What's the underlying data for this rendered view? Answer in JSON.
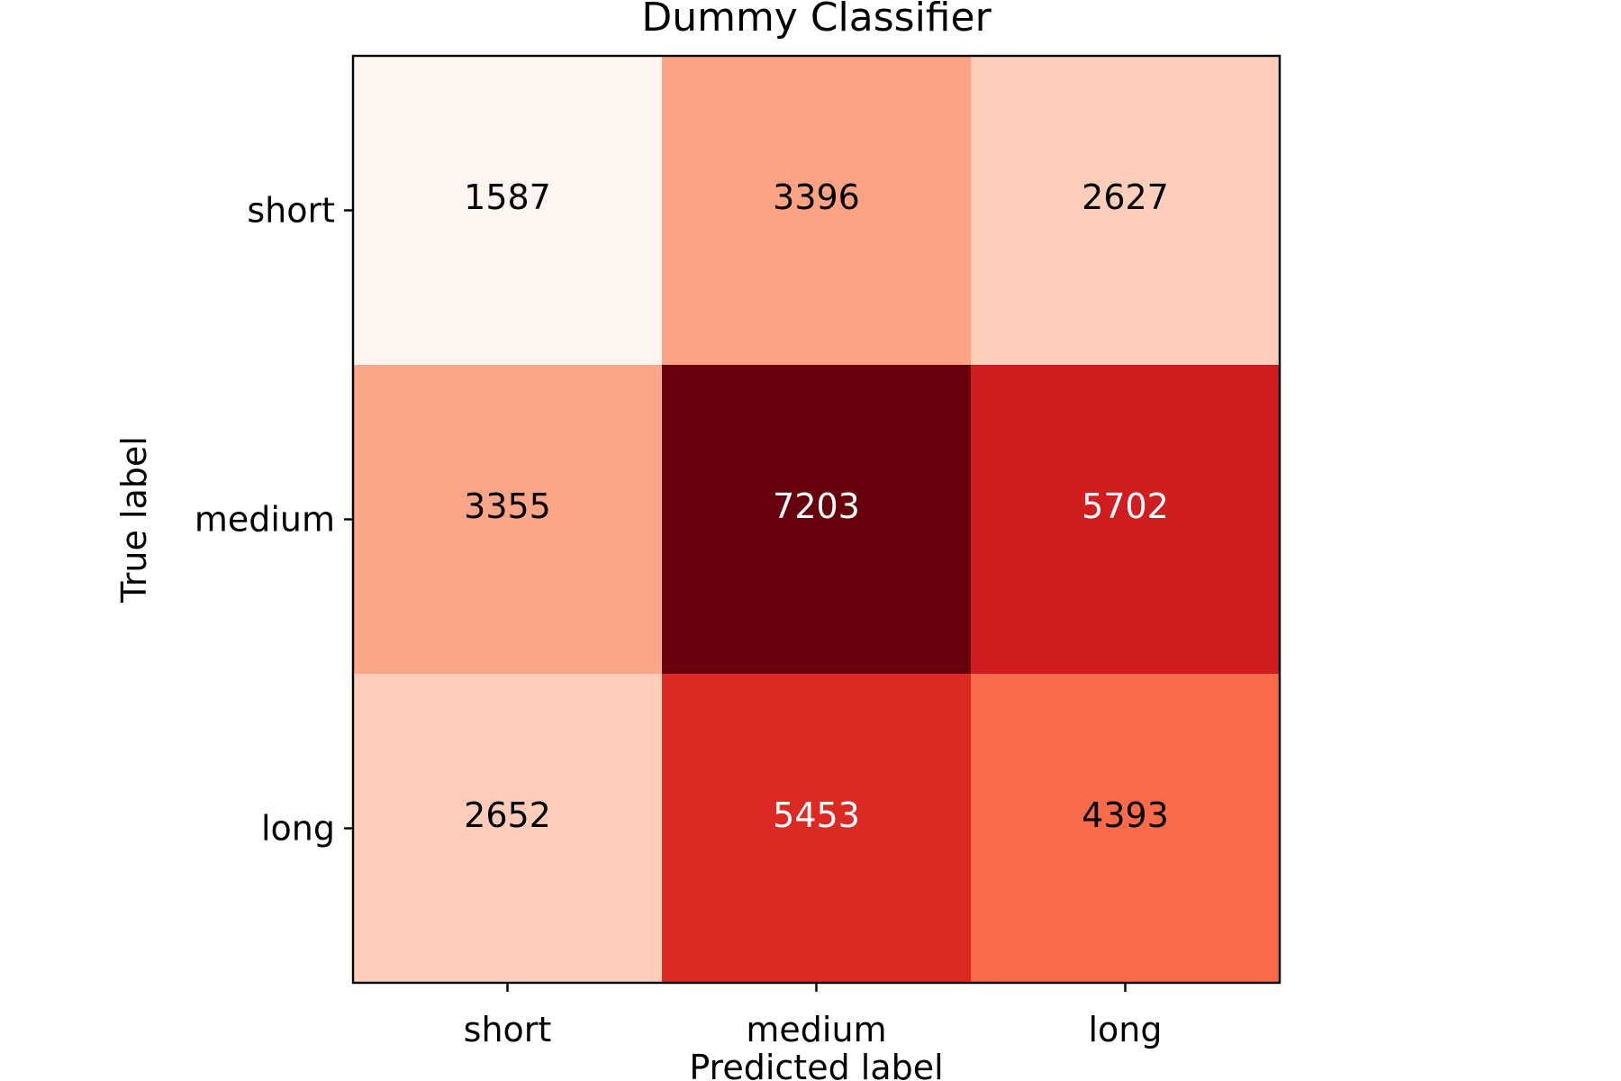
{
  "chart_data": {
    "type": "heatmap",
    "title": "Dummy Classifier",
    "xlabel": "Predicted label",
    "ylabel": "True label",
    "x_categories": [
      "short",
      "medium",
      "long"
    ],
    "y_categories": [
      "short",
      "medium",
      "long"
    ],
    "values": [
      [
        1587,
        3396,
        2627
      ],
      [
        3355,
        7203,
        5702
      ],
      [
        2652,
        5453,
        4393
      ]
    ],
    "colormap": "Reds",
    "colors": {
      "low": "#fff5f0",
      "high": "#67000d",
      "text_dark": "#000000",
      "text_light": "#ffffff",
      "frame": "#000000"
    },
    "grid": false,
    "legend": "none"
  }
}
